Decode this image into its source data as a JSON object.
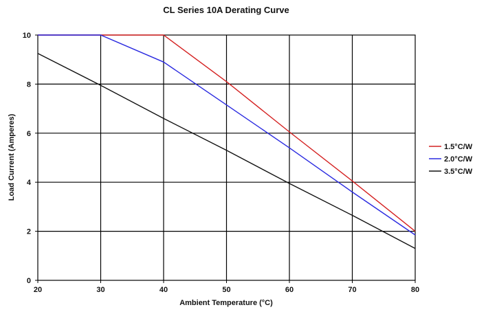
{
  "chart_data": {
    "type": "line",
    "title": "CL Series 10A Derating Curve",
    "xlabel": "Ambient Temperature (°C)",
    "ylabel": "Load Current (Amperes)",
    "xlim": [
      20,
      80
    ],
    "ylim": [
      0,
      10
    ],
    "xticks": [
      20,
      30,
      40,
      50,
      60,
      70,
      80
    ],
    "yticks": [
      0,
      2,
      4,
      6,
      8,
      10
    ],
    "grid": true,
    "legend_position": "right",
    "series": [
      {
        "name": "1.5°C/W",
        "color": "#d42020",
        "points": [
          [
            20,
            10
          ],
          [
            40,
            10
          ],
          [
            50,
            8.1
          ],
          [
            60,
            6.05
          ],
          [
            70,
            4.05
          ],
          [
            80,
            2.0
          ]
        ]
      },
      {
        "name": "2.0°C/W",
        "color": "#2a2ae0",
        "points": [
          [
            20,
            10
          ],
          [
            30,
            10
          ],
          [
            40,
            8.9
          ],
          [
            50,
            7.15
          ],
          [
            60,
            5.4
          ],
          [
            70,
            3.6
          ],
          [
            80,
            1.85
          ]
        ]
      },
      {
        "name": "3.5°C/W",
        "color": "#111111",
        "points": [
          [
            20,
            9.25
          ],
          [
            30,
            7.95
          ],
          [
            40,
            6.6
          ],
          [
            50,
            5.3
          ],
          [
            60,
            3.95
          ],
          [
            70,
            2.65
          ],
          [
            80,
            1.3
          ]
        ]
      }
    ]
  }
}
